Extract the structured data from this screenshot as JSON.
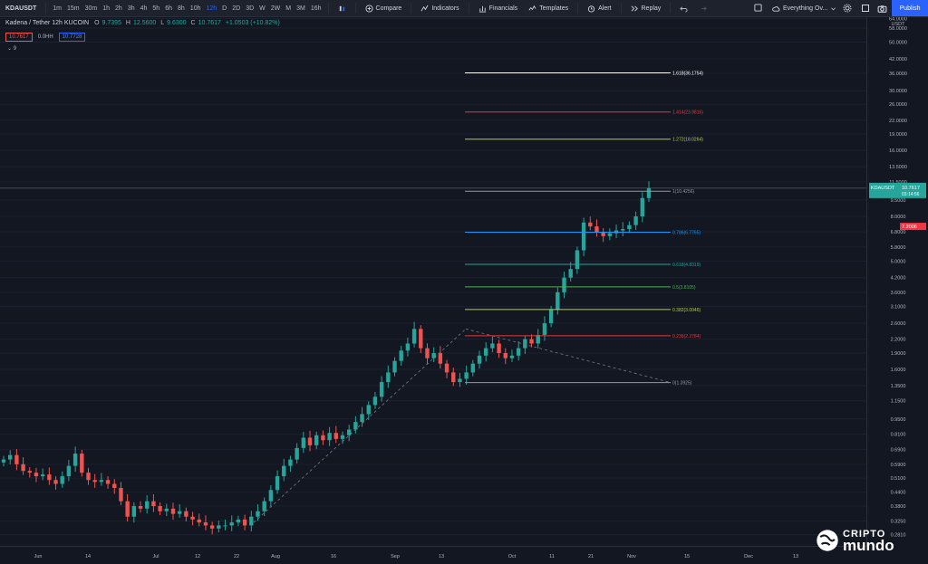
{
  "toolbar": {
    "symbol": "KDAUSDT",
    "timeframes": [
      "1m",
      "15m",
      "30m",
      "1h",
      "2h",
      "3h",
      "4h",
      "5h",
      "6h",
      "8h",
      "10h",
      "12h",
      "D",
      "2D",
      "3D",
      "W",
      "2W",
      "M",
      "3M",
      "16h"
    ],
    "active_timeframe": "12h",
    "compare_label": "Compare",
    "indicators_label": "Indicators",
    "financials_label": "Financials",
    "templates_label": "Templates",
    "alert_label": "Alert",
    "replay_label": "Replay",
    "layout_label": "Everything Ov...",
    "publish_label": "Publish"
  },
  "legend": {
    "title": "Kadena / Tether  12h  KUCOIN",
    "o_key": "O",
    "o_val": "9.7395",
    "h_key": "H",
    "h_val": "12.5600",
    "l_key": "L",
    "l_val": "9.6300",
    "c_key": "C",
    "c_val": "10.7617",
    "change": "+1.0503 (+10.82%)",
    "bid": "10.7617",
    "spread": "0.0HH",
    "ask": "10.7728",
    "indicator_count": "9"
  },
  "chart_data": {
    "type": "candlestick",
    "title": "Kadena / Tether  12h  KUCOIN",
    "scale": "log",
    "ylim": [
      0.25,
      65
    ],
    "x_labels": [
      "Jun",
      "14",
      "Jul",
      "12",
      "22",
      "Aug",
      "16",
      "Sep",
      "13",
      "Oct",
      "11",
      "21",
      "Nov",
      "15",
      "Dec",
      "13"
    ],
    "y_ticks": [
      "64.0000",
      "58.0000",
      "50.0000",
      "42.0000",
      "36.0000",
      "30.0000",
      "26.0000",
      "22.0000",
      "19.0000",
      "16.0000",
      "13.5000",
      "11.5000",
      "9.5000",
      "8.0000",
      "6.8000",
      "5.8000",
      "5.0000",
      "4.2000",
      "3.6000",
      "3.1000",
      "2.6000",
      "2.2000",
      "1.9000",
      "1.6000",
      "1.3500",
      "1.1500",
      "0.9500",
      "0.8100",
      "0.6900",
      "0.5900",
      "0.5100",
      "0.4400",
      "0.3800",
      "0.3250",
      "0.2810"
    ],
    "axis_currency": "USDT",
    "last_price_label": "KDAUSDT",
    "last_price": "10.7617",
    "countdown": "03:14:56",
    "red_level": "7.2006",
    "close_path": [
      0.62,
      0.65,
      0.59,
      0.55,
      0.54,
      0.52,
      0.53,
      0.5,
      0.48,
      0.52,
      0.58,
      0.66,
      0.54,
      0.5,
      0.49,
      0.5,
      0.48,
      0.46,
      0.4,
      0.34,
      0.38,
      0.37,
      0.4,
      0.38,
      0.36,
      0.37,
      0.35,
      0.36,
      0.34,
      0.33,
      0.32,
      0.31,
      0.3,
      0.31,
      0.31,
      0.32,
      0.33,
      0.31,
      0.34,
      0.36,
      0.4,
      0.45,
      0.52,
      0.58,
      0.62,
      0.7,
      0.78,
      0.72,
      0.8,
      0.76,
      0.82,
      0.77,
      0.8,
      0.85,
      0.92,
      1.0,
      1.1,
      1.2,
      1.4,
      1.55,
      1.75,
      1.95,
      2.1,
      2.45,
      2.0,
      1.8,
      1.9,
      1.7,
      1.55,
      1.4,
      1.45,
      1.55,
      1.7,
      1.85,
      2.0,
      2.1,
      1.9,
      1.8,
      1.85,
      2.0,
      2.2,
      2.1,
      2.3,
      2.6,
      3.0,
      3.6,
      4.2,
      4.6,
      5.6,
      7.5,
      7.2,
      6.8,
      6.5,
      6.7,
      6.9,
      7.0,
      7.3,
      8.0,
      9.7,
      10.76
    ],
    "fib_levels": [
      {
        "label": "1.618(36.1754)",
        "value": 36.1754,
        "color": "#ffffff"
      },
      {
        "label": "1.414(23.9816)",
        "value": 23.9816,
        "color": "#e53935"
      },
      {
        "label": "1.272(18.0264)",
        "value": 18.0264,
        "color": "#b2d235"
      },
      {
        "label": "1(10.4256)",
        "value": 10.4256,
        "color": "#9598a1"
      },
      {
        "label": "0.786(6.7765)",
        "value": 6.7765,
        "color": "#2196f3"
      },
      {
        "label": "0.618(4.8319)",
        "value": 4.8319,
        "color": "#26a69a"
      },
      {
        "label": "0.5(3.8105)",
        "value": 3.8105,
        "color": "#4caf50"
      },
      {
        "label": "0.382(3.0046)",
        "value": 3.0046,
        "color": "#b2d235"
      },
      {
        "label": "0.236(2.2784)",
        "value": 2.2784,
        "color": "#e53935"
      },
      {
        "label": "0(1.3925)",
        "value": 1.3925,
        "color": "#9598a1"
      }
    ],
    "bull_color": "#26a69a",
    "bear_color": "#ef5350"
  },
  "watermark": {
    "line1": "CRIPTO",
    "line2": "mundo"
  }
}
